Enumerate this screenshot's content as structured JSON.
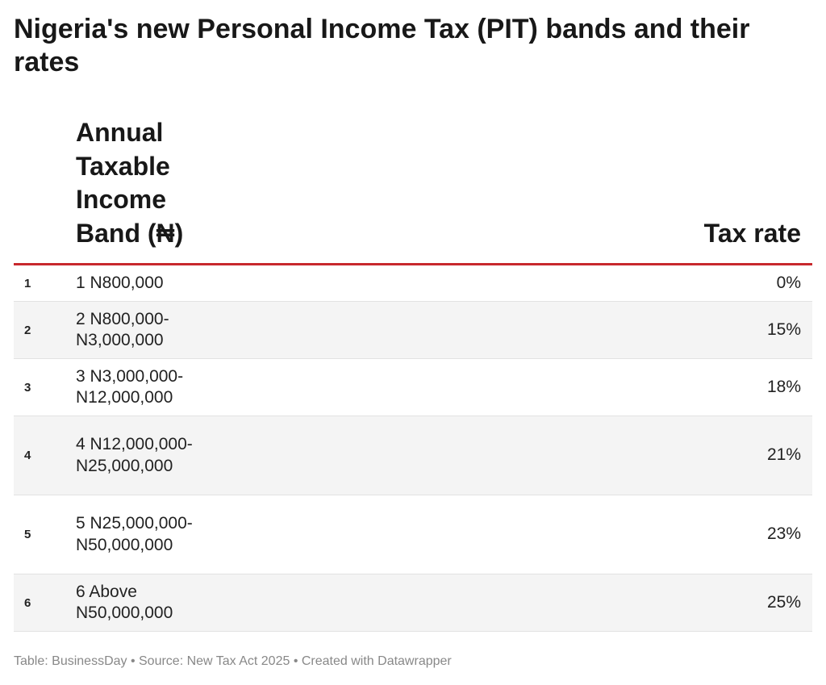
{
  "title": "Nigeria's new Personal Income Tax (PIT) bands and their rates",
  "header": {
    "band": "Annual Taxable Income Band (₦)",
    "rate": "Tax rate"
  },
  "rows": [
    {
      "num": "1",
      "band": "1 N800,000",
      "rate": "0%"
    },
    {
      "num": "2",
      "band": "2 N800,000-N3,000,000",
      "rate": "15%"
    },
    {
      "num": "3",
      "band": "3 N3,000,000-N12,000,000",
      "rate": "18%"
    },
    {
      "num": "4",
      "band": "4 N12,000,000-N25,000,000",
      "rate": "21%"
    },
    {
      "num": "5",
      "band": "5 N25,000,000-N50,000,000",
      "rate": "23%"
    },
    {
      "num": "6",
      "band": "6 Above N50,000,000",
      "rate": "25%"
    }
  ],
  "footer": "Table: BusinessDay • Source: New Tax Act 2025 • Created with Datawrapper",
  "colors": {
    "accent_rule": "#c8282d",
    "alt_row": "#f4f4f4"
  },
  "chart_data": {
    "type": "table",
    "title": "Nigeria's new Personal Income Tax (PIT) bands and their rates",
    "columns": [
      "Annual Taxable Income Band (₦)",
      "Tax rate"
    ],
    "rows": [
      [
        "1 N800,000",
        "0%"
      ],
      [
        "2 N800,000-N3,000,000",
        "15%"
      ],
      [
        "3 N3,000,000-N12,000,000",
        "18%"
      ],
      [
        "4 N12,000,000-N25,000,000",
        "21%"
      ],
      [
        "5 N25,000,000-N50,000,000",
        "23%"
      ],
      [
        "6 Above N50,000,000",
        "25%"
      ]
    ]
  }
}
